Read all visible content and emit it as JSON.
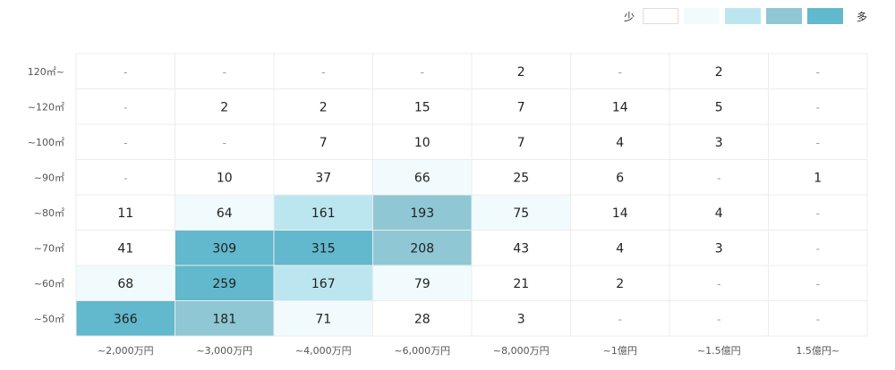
{
  "legend": {
    "low_label": "少",
    "high_label": "多",
    "colors": [
      "#ffffff",
      "#f1fbfd",
      "#bbe6ef",
      "#8fc7d4",
      "#62b8cc"
    ]
  },
  "chart_data": {
    "type": "heatmap",
    "x_categories": [
      "~2,000万円",
      "~3,000万円",
      "~4,000万円",
      "~6,000万円",
      "~8,000万円",
      "~1億円",
      "~1.5億円",
      "1.5億円~"
    ],
    "y_categories": [
      "120㎡~",
      "~120㎡",
      "~100㎡",
      "~90㎡",
      "~80㎡",
      "~70㎡",
      "~60㎡",
      "~50㎡"
    ],
    "values": [
      [
        "-",
        "-",
        "-",
        "-",
        "2",
        "-",
        "2",
        "-"
      ],
      [
        "-",
        "2",
        "2",
        "15",
        "7",
        "14",
        "5",
        "-"
      ],
      [
        "-",
        "-",
        "7",
        "10",
        "7",
        "4",
        "3",
        "-"
      ],
      [
        "-",
        "10",
        "37",
        "66",
        "25",
        "6",
        "-",
        "1"
      ],
      [
        "11",
        "64",
        "161",
        "193",
        "75",
        "14",
        "4",
        "-"
      ],
      [
        "41",
        "309",
        "315",
        "208",
        "43",
        "4",
        "3",
        "-"
      ],
      [
        "68",
        "259",
        "167",
        "79",
        "21",
        "2",
        "-",
        "-"
      ],
      [
        "366",
        "181",
        "71",
        "28",
        "3",
        "-",
        "-",
        "-"
      ]
    ],
    "levels": [
      [
        0,
        0,
        0,
        0,
        0,
        0,
        0,
        0
      ],
      [
        0,
        0,
        0,
        0,
        0,
        0,
        0,
        0
      ],
      [
        0,
        0,
        0,
        0,
        0,
        0,
        0,
        0
      ],
      [
        0,
        0,
        0,
        1,
        0,
        0,
        0,
        0
      ],
      [
        0,
        1,
        2,
        3,
        1,
        0,
        0,
        0
      ],
      [
        0,
        4,
        4,
        3,
        0,
        0,
        0,
        0
      ],
      [
        1,
        4,
        2,
        1,
        0,
        0,
        0,
        0
      ],
      [
        4,
        3,
        1,
        0,
        0,
        0,
        0,
        0
      ]
    ]
  }
}
